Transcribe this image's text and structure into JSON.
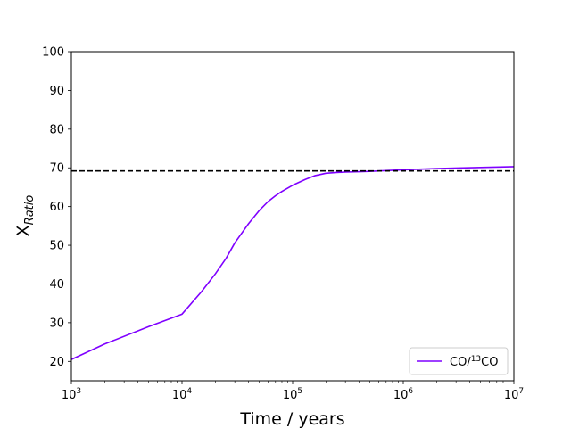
{
  "chart_data": {
    "type": "line",
    "title": "",
    "xlabel": "Time / years",
    "ylabel_base": "X",
    "ylabel_sub": "Ratio",
    "x_scale": "log",
    "xlim": [
      1000,
      10000000
    ],
    "ylim": [
      15,
      100
    ],
    "grid": false,
    "x_tick_base": "10",
    "x_ticks": [
      {
        "value": 1000,
        "exp": "3"
      },
      {
        "value": 10000,
        "exp": "4"
      },
      {
        "value": 100000,
        "exp": "5"
      },
      {
        "value": 1000000,
        "exp": "6"
      },
      {
        "value": 10000000,
        "exp": "7"
      }
    ],
    "y_ticks": [
      20,
      30,
      40,
      50,
      60,
      70,
      80,
      90,
      100
    ],
    "legend_position": "lower right",
    "series": [
      {
        "name_base": "CO/",
        "name_sup": "13",
        "name_tail": "CO",
        "color": "#7f00ff",
        "style": "solid",
        "x": [
          1000,
          2000,
          5000,
          10000,
          15000,
          20000,
          25000,
          30000,
          40000,
          50000,
          60000,
          70000,
          80000,
          100000,
          130000,
          160000,
          200000,
          250000,
          300000,
          400000,
          500000,
          700000,
          1000000,
          2000000,
          5000000,
          10000000
        ],
        "y": [
          20.5,
          24.5,
          29.0,
          32.2,
          38.0,
          42.6,
          46.6,
          50.6,
          55.6,
          59.0,
          61.3,
          62.8,
          63.9,
          65.5,
          67.0,
          68.0,
          68.6,
          68.8,
          68.9,
          69.0,
          69.1,
          69.3,
          69.5,
          69.8,
          70.1,
          70.3
        ]
      },
      {
        "name": "",
        "color": "#000000",
        "style": "dashed",
        "x": [
          1000,
          10000000
        ],
        "y": [
          69.2,
          69.2
        ]
      }
    ]
  }
}
